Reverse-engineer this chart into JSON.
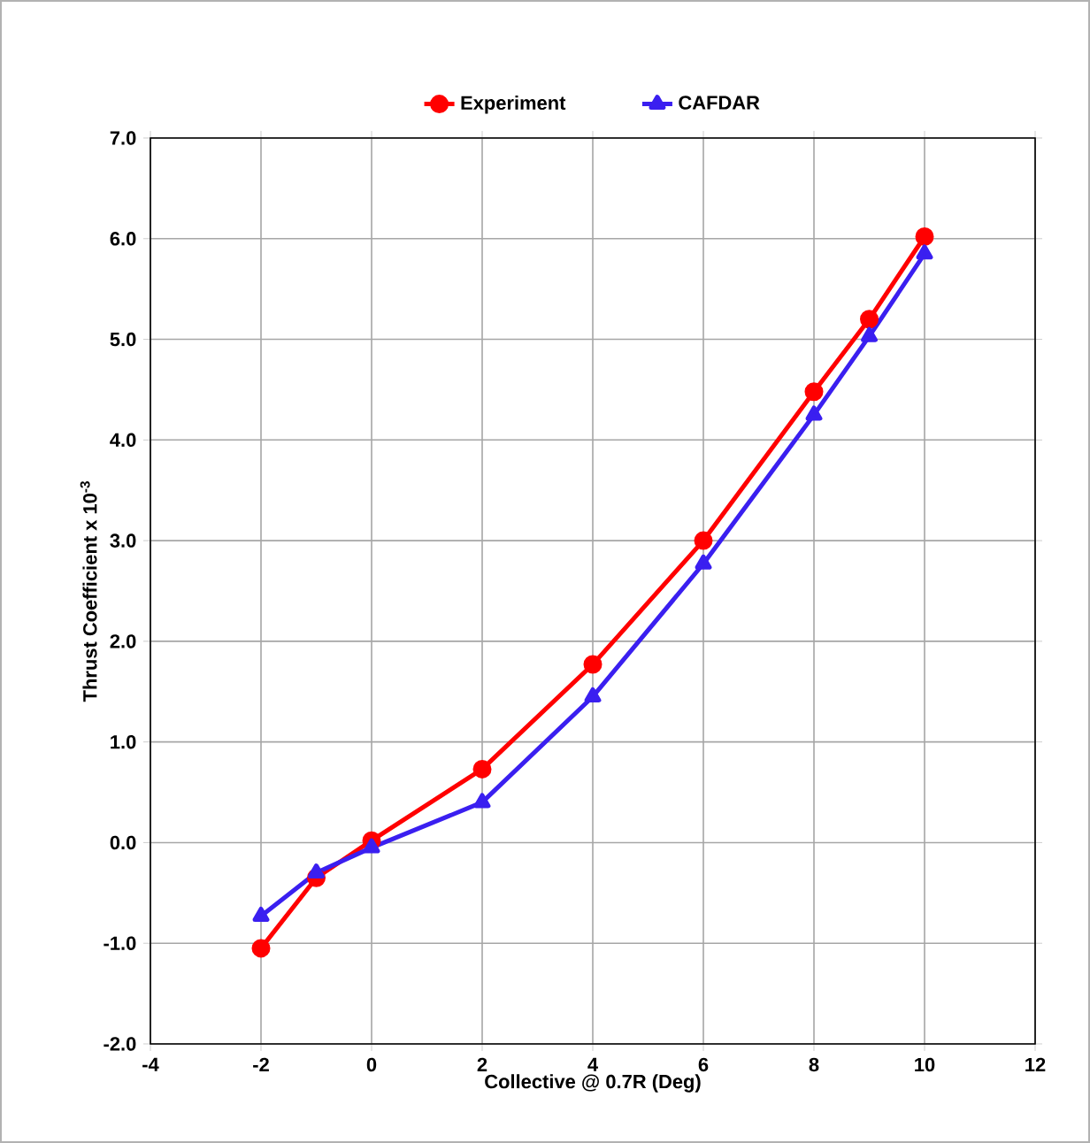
{
  "chart_data": {
    "type": "line",
    "xlabel": "Collective @ 0.7R (Deg)",
    "ylabel": "Thrust Coefficient x 10$^{-3}$",
    "xlim": [
      -4,
      12
    ],
    "xticks": [
      -4,
      -2,
      0,
      2,
      4,
      6,
      8,
      10,
      12
    ],
    "ylim": [
      -2,
      7
    ],
    "yticks": [
      {
        "value": -2,
        "label": "-2.0"
      },
      {
        "value": -1,
        "label": "-1.0"
      },
      {
        "value": 0,
        "label": "0.0"
      },
      {
        "value": 1,
        "label": "1.0"
      },
      {
        "value": 2,
        "label": "2.0"
      },
      {
        "value": 3,
        "label": "3.0"
      },
      {
        "value": 4,
        "label": "4.0"
      },
      {
        "value": 5,
        "label": "5.0"
      },
      {
        "value": 6,
        "label": "6.0"
      },
      {
        "value": 7,
        "label": "7.0"
      }
    ],
    "grid": true,
    "legend": "top",
    "line_style": "solid",
    "x": [
      -2,
      -1,
      0,
      2,
      4,
      6,
      8,
      9,
      10
    ],
    "series": [
      {
        "name": "Experiment",
        "color": "#ff0000",
        "marker": "circle",
        "values": [
          -1.05,
          -0.35,
          0.02,
          0.73,
          1.77,
          3.0,
          4.48,
          5.2,
          6.02
        ]
      },
      {
        "name": "CAFDAR",
        "color": "#3a1ff0",
        "marker": "triangle",
        "values": [
          -0.73,
          -0.3,
          -0.05,
          0.4,
          1.45,
          2.77,
          4.25,
          5.03,
          5.85
        ]
      }
    ]
  }
}
